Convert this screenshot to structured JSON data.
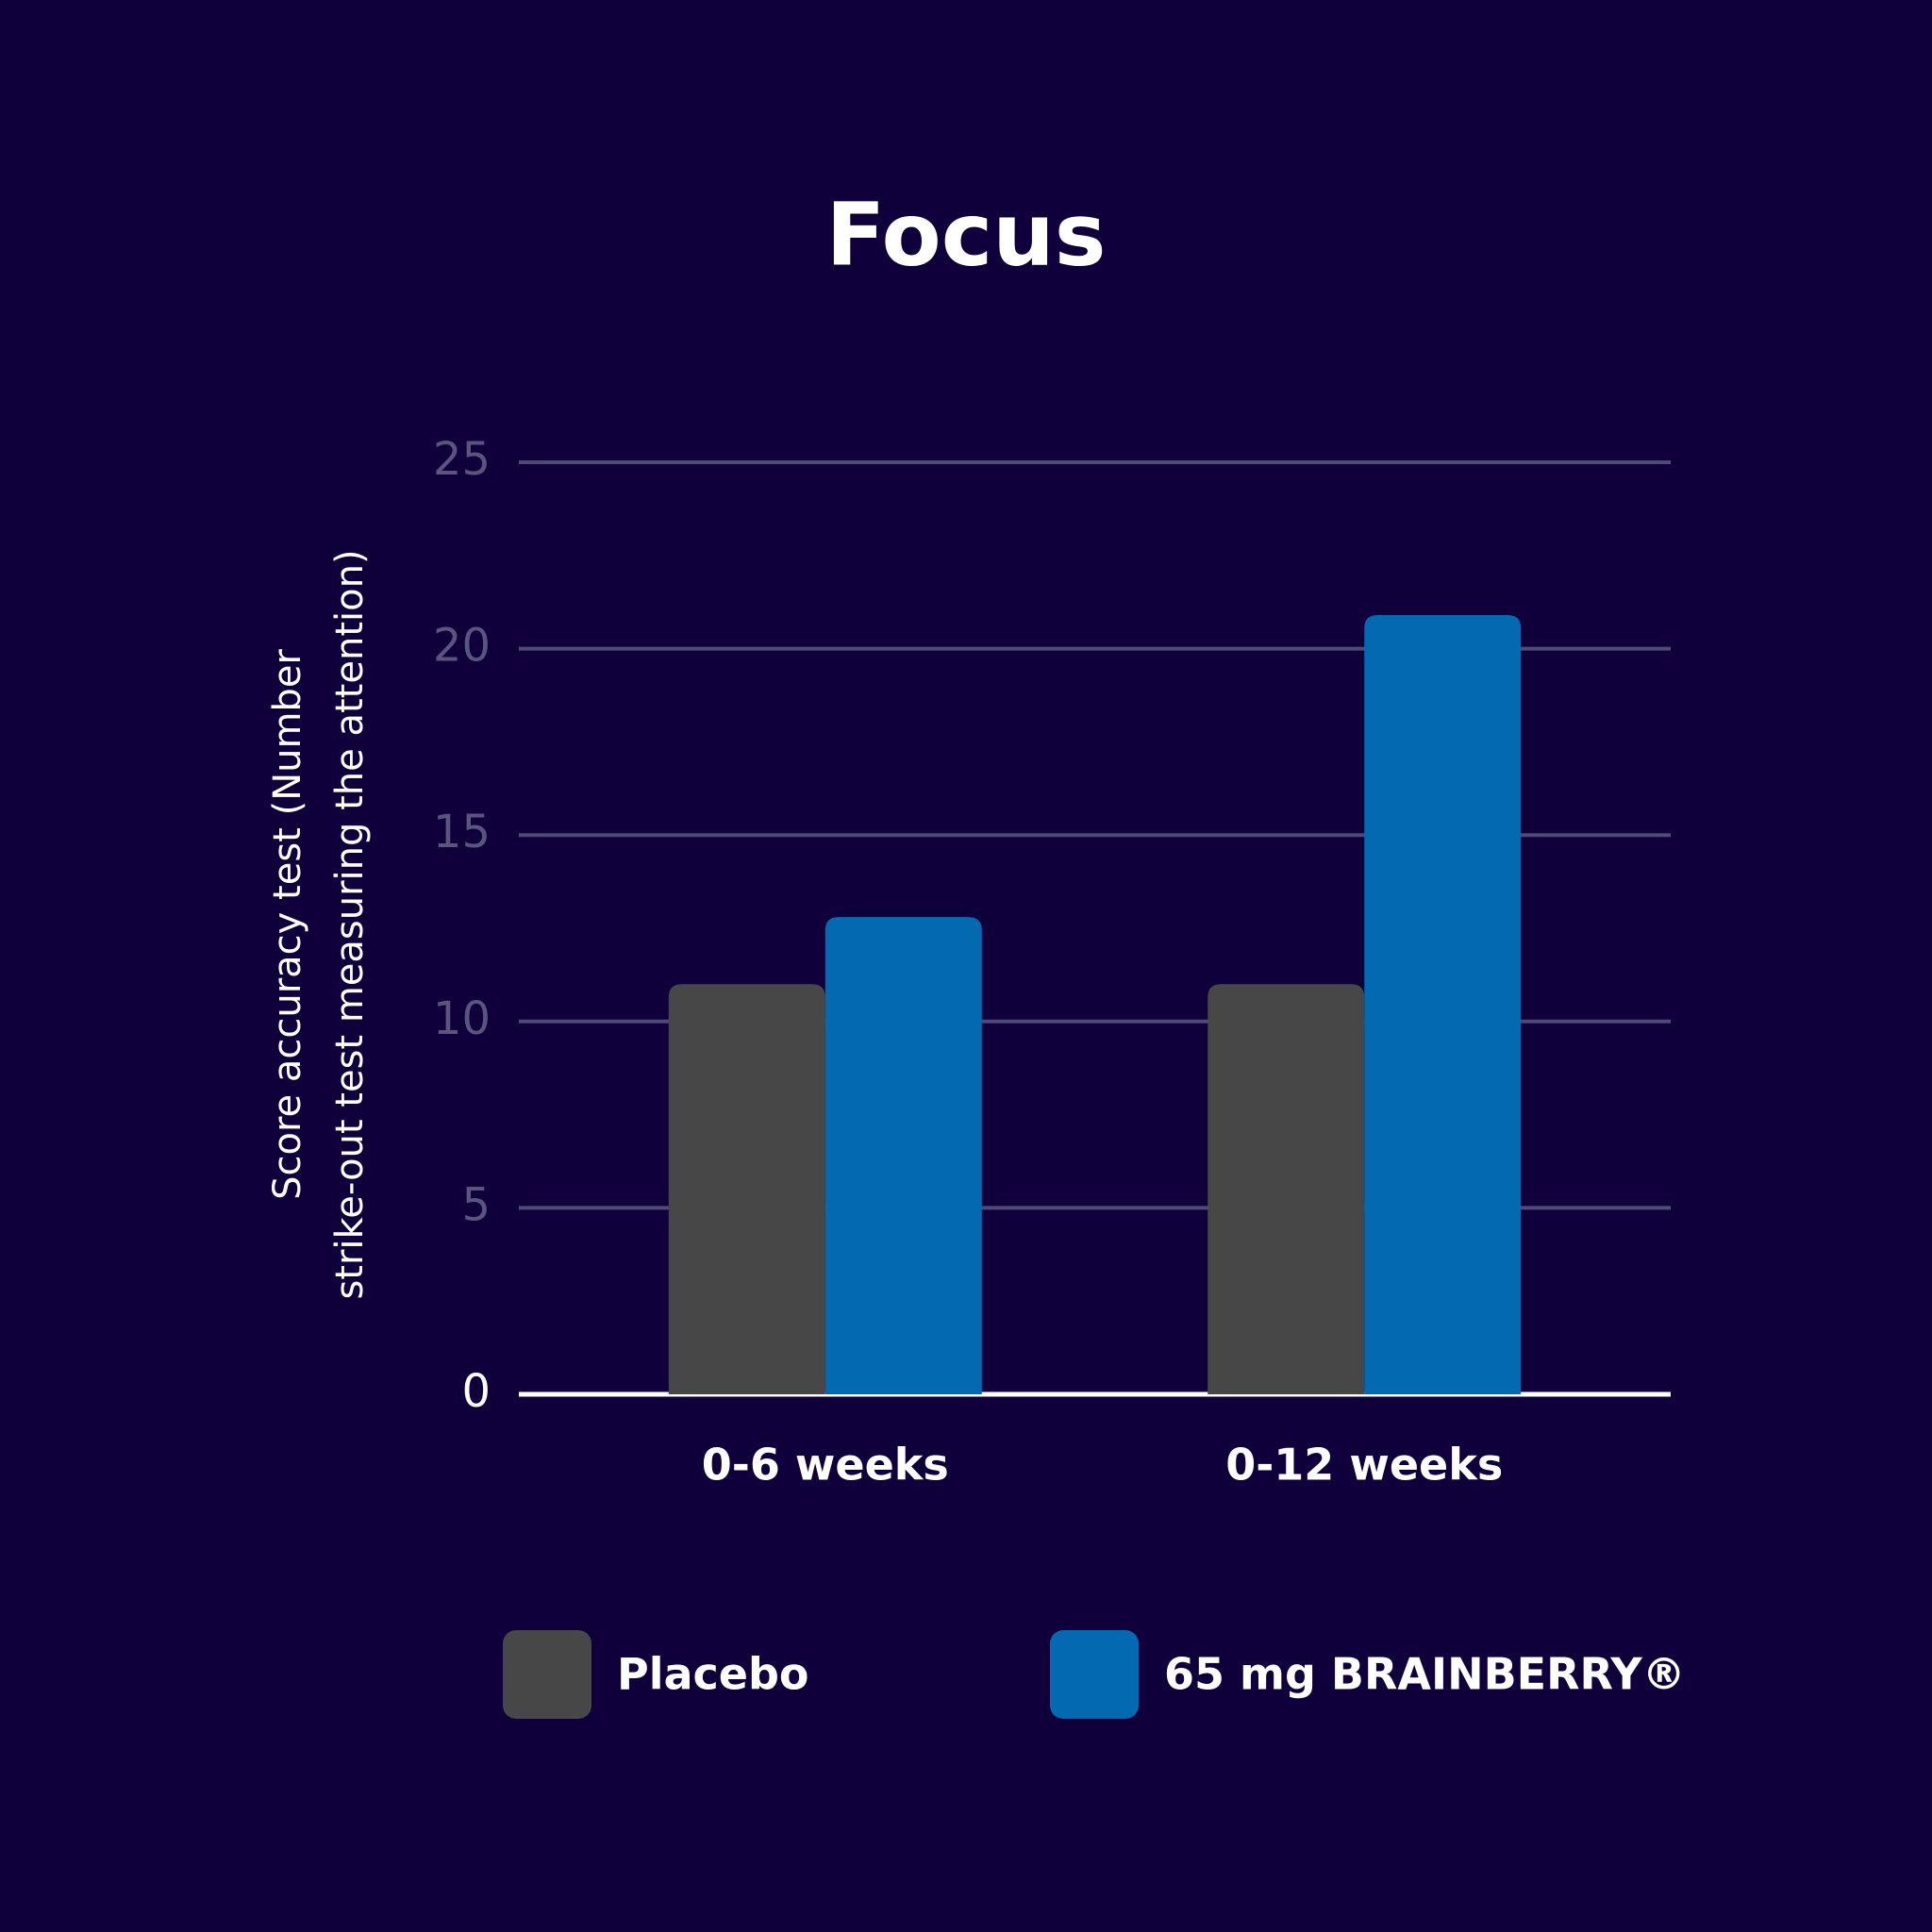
{
  "chart_data": {
    "type": "bar",
    "title": "Focus",
    "ylabel": [
      "Score accuracy test (Number",
      "strike-out test measuring the attention)"
    ],
    "categories": [
      "0-6 weeks",
      "0-12 weeks"
    ],
    "series": [
      {
        "name": "Placebo",
        "color": "#474747",
        "values": [
          11,
          11
        ]
      },
      {
        "name": "65 mg BRAINBERRY®",
        "color": "#0369b1",
        "values": [
          12.8,
          20.9
        ]
      }
    ],
    "ylim": [
      0,
      25
    ],
    "yticks": [
      0,
      5,
      10,
      15,
      20,
      25
    ],
    "grid": true
  }
}
